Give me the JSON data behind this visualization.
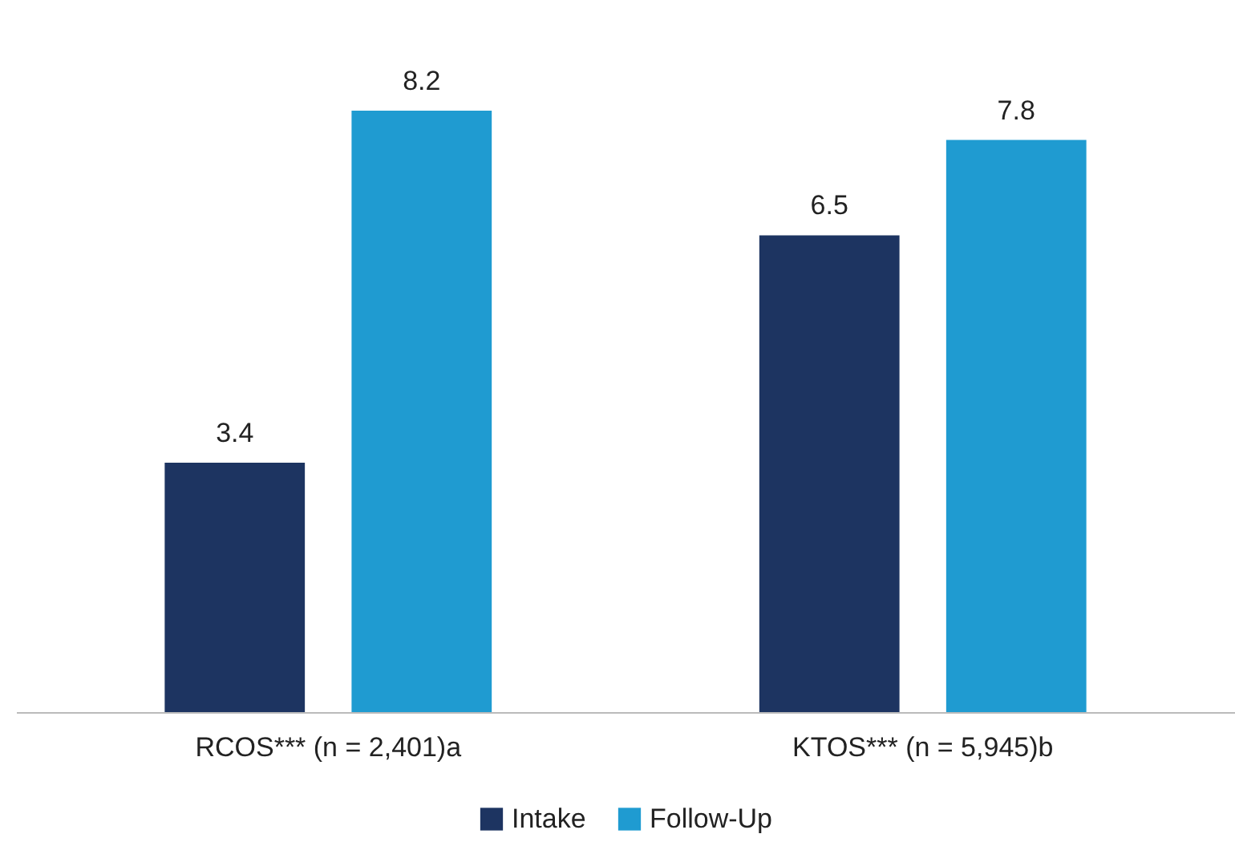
{
  "chart_data": {
    "type": "bar",
    "categories": [
      "RCOS*** (n = 2,401)a",
      "KTOS*** (n = 5,945)b"
    ],
    "series": [
      {
        "name": "Intake",
        "color": "#1d3461",
        "values": [
          3.4,
          6.5
        ]
      },
      {
        "name": "Follow-Up",
        "color": "#1f9bd1",
        "values": [
          8.2,
          7.8
        ]
      }
    ],
    "data_labels": true,
    "legend": "bottom"
  }
}
